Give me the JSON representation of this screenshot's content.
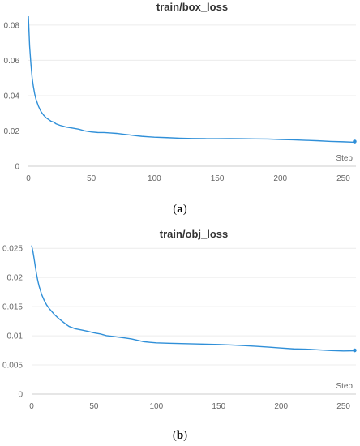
{
  "chart_data": [
    {
      "type": "line",
      "title": "train/box_loss",
      "xlabel": "Step",
      "ylabel": "",
      "caption": [
        "(",
        "a",
        ")"
      ],
      "xlim": [
        0,
        260
      ],
      "ylim": [
        0,
        0.085
      ],
      "xticks": [
        0,
        50,
        100,
        150,
        200,
        250
      ],
      "xtick_labels": [
        "0",
        "50",
        "100",
        "150",
        "200",
        "250"
      ],
      "yticks": [
        0,
        0.02,
        0.04,
        0.06,
        0.08
      ],
      "ytick_labels": [
        "0",
        "0.02",
        "0.04",
        "0.06",
        "0.08"
      ],
      "line_color": "#2f8fd8",
      "series": [
        {
          "x": [
            0,
            1,
            2,
            3,
            4,
            5,
            6,
            7,
            8,
            10,
            12,
            14,
            16,
            18,
            20,
            22,
            25,
            28,
            30,
            35,
            40,
            45,
            50,
            55,
            60,
            65,
            70,
            75,
            80,
            85,
            90,
            95,
            100,
            110,
            120,
            130,
            140,
            150,
            160,
            170,
            180,
            190,
            200,
            210,
            220,
            230,
            240,
            250,
            259
          ],
          "y": [
            0.085,
            0.068,
            0.058,
            0.05,
            0.045,
            0.041,
            0.038,
            0.036,
            0.034,
            0.031,
            0.029,
            0.0275,
            0.0265,
            0.0255,
            0.025,
            0.024,
            0.0232,
            0.0226,
            0.0222,
            0.0216,
            0.021,
            0.0202,
            0.0195,
            0.019,
            0.0188,
            0.0185,
            0.0182,
            0.0178,
            0.0175,
            0.0172,
            0.017,
            0.0169,
            0.0168,
            0.0166,
            0.0163,
            0.016,
            0.0158,
            0.0156,
            0.0155,
            0.0153,
            0.0151,
            0.015,
            0.0148,
            0.0147,
            0.0146,
            0.0145,
            0.0143,
            0.0142,
            0.014
          ]
        }
      ]
    },
    {
      "type": "line",
      "title": "train/obj_loss",
      "xlabel": "Step",
      "ylabel": "",
      "caption": [
        "(",
        "b",
        ")"
      ],
      "xlim": [
        0,
        260
      ],
      "ylim": [
        0,
        0.026
      ],
      "xticks": [
        0,
        50,
        100,
        150,
        200,
        250
      ],
      "xtick_labels": [
        "0",
        "50",
        "100",
        "150",
        "200",
        "250"
      ],
      "yticks": [
        0,
        0.005,
        0.01,
        0.015,
        0.02,
        0.025
      ],
      "ytick_labels": [
        "0",
        "0.005",
        "0.01",
        "0.015",
        "0.02",
        "0.025"
      ],
      "line_color": "#2f8fd8",
      "series": [
        {
          "x": [
            0,
            1,
            2,
            3,
            4,
            5,
            6,
            7,
            8,
            10,
            12,
            14,
            16,
            18,
            20,
            22,
            25,
            28,
            30,
            35,
            40,
            45,
            50,
            55,
            60,
            65,
            70,
            75,
            80,
            85,
            90,
            95,
            100,
            110,
            120,
            130,
            140,
            150,
            160,
            170,
            180,
            190,
            200,
            210,
            220,
            230,
            240,
            250,
            259
          ],
          "y": [
            0.0255,
            0.0245,
            0.0232,
            0.0218,
            0.0205,
            0.0194,
            0.0185,
            0.0178,
            0.0171,
            0.0161,
            0.0153,
            0.0147,
            0.0142,
            0.0137,
            0.0133,
            0.0129,
            0.0124,
            0.0119,
            0.0116,
            0.0112,
            0.011,
            0.0107,
            0.0104,
            0.0102,
            0.0099,
            0.0098,
            0.0097,
            0.0096,
            0.0095,
            0.0093,
            0.0091,
            0.009,
            0.0089,
            0.0088,
            0.0087,
            0.0086,
            0.0085,
            0.0084,
            0.0083,
            0.0082,
            0.0081,
            0.008,
            0.0079,
            0.0078,
            0.0078,
            0.0077,
            0.0076,
            0.0075,
            0.0075
          ]
        }
      ]
    }
  ]
}
